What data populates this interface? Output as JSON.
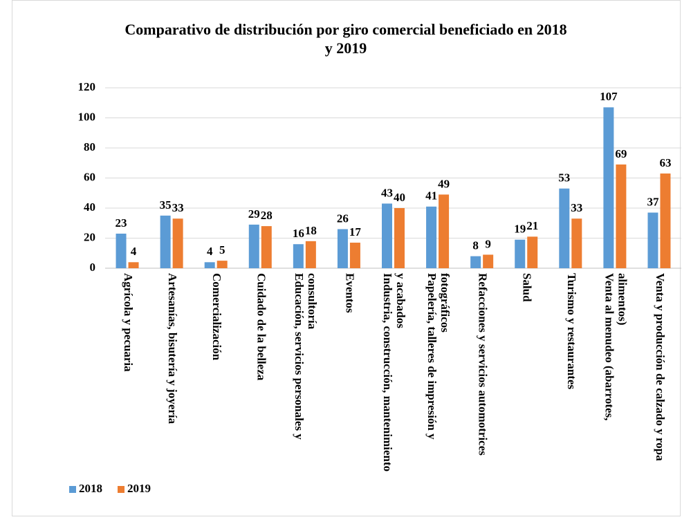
{
  "chart_data": {
    "type": "bar",
    "title": "Comparativo de distribución por giro comercial beneficiado en 2018 y 2019",
    "categories": [
      "Agrícola y pecuaria",
      "Artesanías, bisutería y joyería",
      "Comercialización",
      "Cuidado de la belleza",
      "Educación, servicios personales y consultoría",
      "Eventos",
      "Industria, construcción, mantenimiento y acabados",
      "Papelería, talleres de impresión y fotográficos",
      "Refacciones y servicios automotrices",
      "Salud",
      "Turismo y restaurantes",
      "Venta al menudeo (abarrotes, alimentos)",
      "Venta y producción de calzado y ropa"
    ],
    "series": [
      {
        "name": "2018",
        "color": "#5b9bd5",
        "values": [
          23,
          35,
          4,
          29,
          16,
          26,
          43,
          41,
          8,
          19,
          53,
          107,
          37
        ]
      },
      {
        "name": "2019",
        "color": "#ed7d31",
        "values": [
          4,
          33,
          5,
          28,
          18,
          17,
          40,
          49,
          9,
          21,
          33,
          69,
          63
        ]
      }
    ],
    "ylim": [
      0,
      120
    ],
    "yticks": [
      0,
      20,
      40,
      60,
      80,
      100,
      120
    ],
    "grid": true,
    "legend": "bottom-left"
  }
}
